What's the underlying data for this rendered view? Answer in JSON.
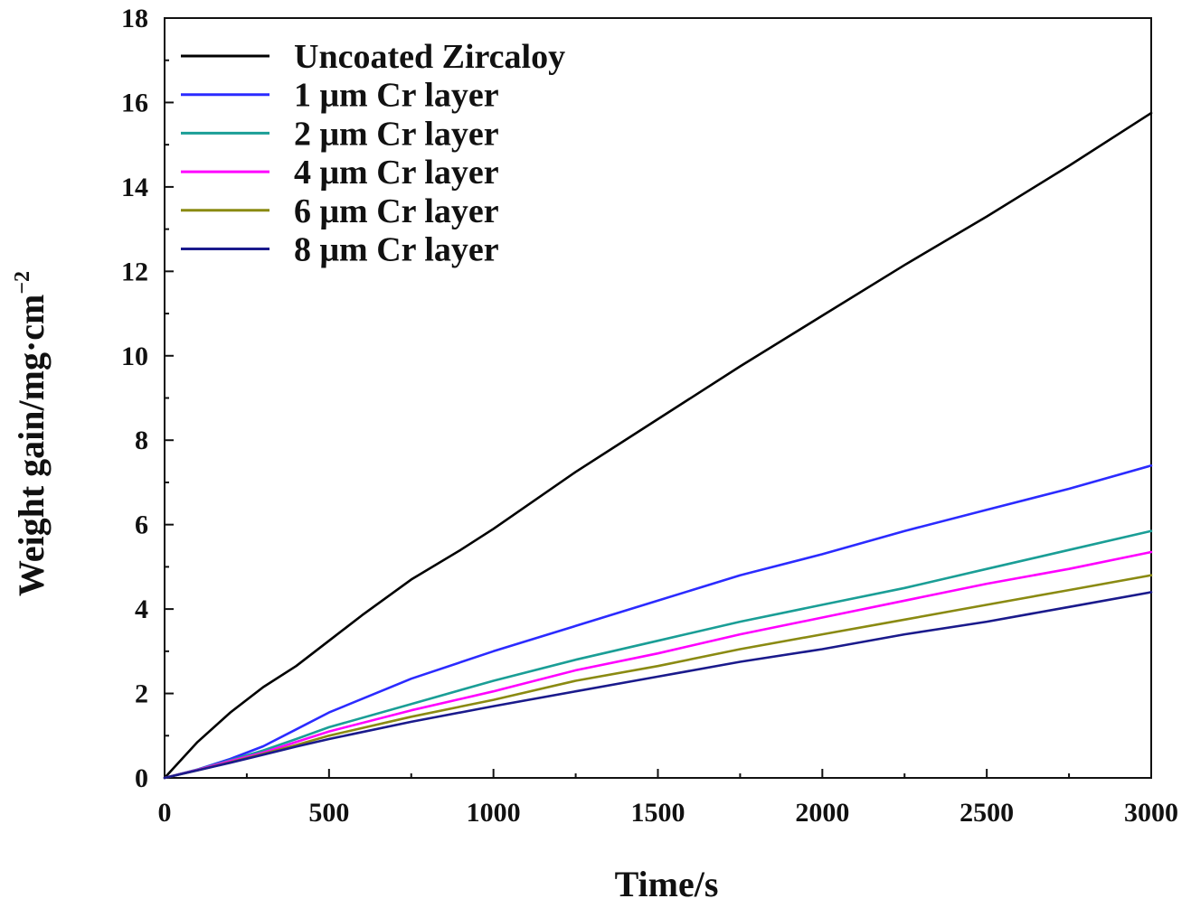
{
  "chart_data": {
    "type": "line",
    "title": "",
    "xlabel": "Time/s",
    "ylabel": "Weight gain/mg·cm",
    "ylabel_superscript": "−2",
    "xlim": [
      0,
      3000
    ],
    "ylim": [
      0,
      18
    ],
    "x_ticks": [
      0,
      500,
      1000,
      1500,
      2000,
      2500,
      3000
    ],
    "y_ticks": [
      0,
      2,
      4,
      6,
      8,
      10,
      12,
      14,
      16,
      18
    ],
    "x_tick_labels": [
      "0",
      "500",
      "1000",
      "1500",
      "2000",
      "2500",
      "3000"
    ],
    "y_tick_labels": [
      "0",
      "2",
      "4",
      "6",
      "8",
      "10",
      "12",
      "14",
      "16",
      "18"
    ],
    "legend_position": "top-left",
    "grid": false,
    "series": [
      {
        "name": "Uncoated Zircaloy",
        "color": "#000000",
        "x": [
          0,
          100,
          200,
          300,
          400,
          500,
          600,
          750,
          900,
          1000,
          1250,
          1500,
          1750,
          2000,
          2250,
          2500,
          2750,
          3000
        ],
        "y": [
          0,
          0.85,
          1.55,
          2.15,
          2.65,
          3.25,
          3.85,
          4.7,
          5.4,
          5.9,
          7.25,
          8.5,
          9.75,
          10.95,
          12.15,
          13.3,
          14.5,
          15.75
        ]
      },
      {
        "name": "1 μm Cr layer",
        "color": "#2b2bff",
        "x": [
          0,
          100,
          200,
          300,
          400,
          500,
          750,
          1000,
          1250,
          1500,
          1750,
          2000,
          2250,
          2500,
          2750,
          3000
        ],
        "y": [
          0,
          0.2,
          0.45,
          0.75,
          1.15,
          1.55,
          2.35,
          3.0,
          3.6,
          4.2,
          4.8,
          5.3,
          5.85,
          6.35,
          6.85,
          7.4
        ]
      },
      {
        "name": "2 μm Cr layer",
        "color": "#1a9e96",
        "x": [
          0,
          100,
          200,
          300,
          400,
          500,
          750,
          1000,
          1250,
          1500,
          1750,
          2000,
          2250,
          2500,
          2750,
          3000
        ],
        "y": [
          0,
          0.2,
          0.42,
          0.65,
          0.92,
          1.2,
          1.75,
          2.3,
          2.8,
          3.25,
          3.7,
          4.1,
          4.5,
          4.95,
          5.4,
          5.85
        ]
      },
      {
        "name": "4 μm Cr layer",
        "color": "#ff00ff",
        "x": [
          0,
          100,
          200,
          300,
          400,
          500,
          750,
          1000,
          1250,
          1500,
          1750,
          2000,
          2250,
          2500,
          2750,
          3000
        ],
        "y": [
          0,
          0.19,
          0.4,
          0.6,
          0.85,
          1.1,
          1.6,
          2.05,
          2.55,
          2.95,
          3.4,
          3.8,
          4.2,
          4.6,
          4.95,
          5.35
        ]
      },
      {
        "name": "6 μm Cr layer",
        "color": "#8a8a12",
        "x": [
          0,
          100,
          200,
          300,
          400,
          500,
          750,
          1000,
          1250,
          1500,
          1750,
          2000,
          2250,
          2500,
          2750,
          3000
        ],
        "y": [
          0,
          0.18,
          0.37,
          0.57,
          0.78,
          1.0,
          1.45,
          1.85,
          2.3,
          2.65,
          3.05,
          3.4,
          3.75,
          4.1,
          4.45,
          4.8
        ]
      },
      {
        "name": "8 μm Cr layer",
        "color": "#1a1a8c",
        "x": [
          0,
          100,
          200,
          300,
          400,
          500,
          750,
          1000,
          1250,
          1500,
          1750,
          2000,
          2250,
          2500,
          2750,
          3000
        ],
        "y": [
          0,
          0.18,
          0.36,
          0.55,
          0.74,
          0.92,
          1.33,
          1.7,
          2.05,
          2.4,
          2.75,
          3.05,
          3.4,
          3.7,
          4.05,
          4.4
        ]
      }
    ]
  }
}
